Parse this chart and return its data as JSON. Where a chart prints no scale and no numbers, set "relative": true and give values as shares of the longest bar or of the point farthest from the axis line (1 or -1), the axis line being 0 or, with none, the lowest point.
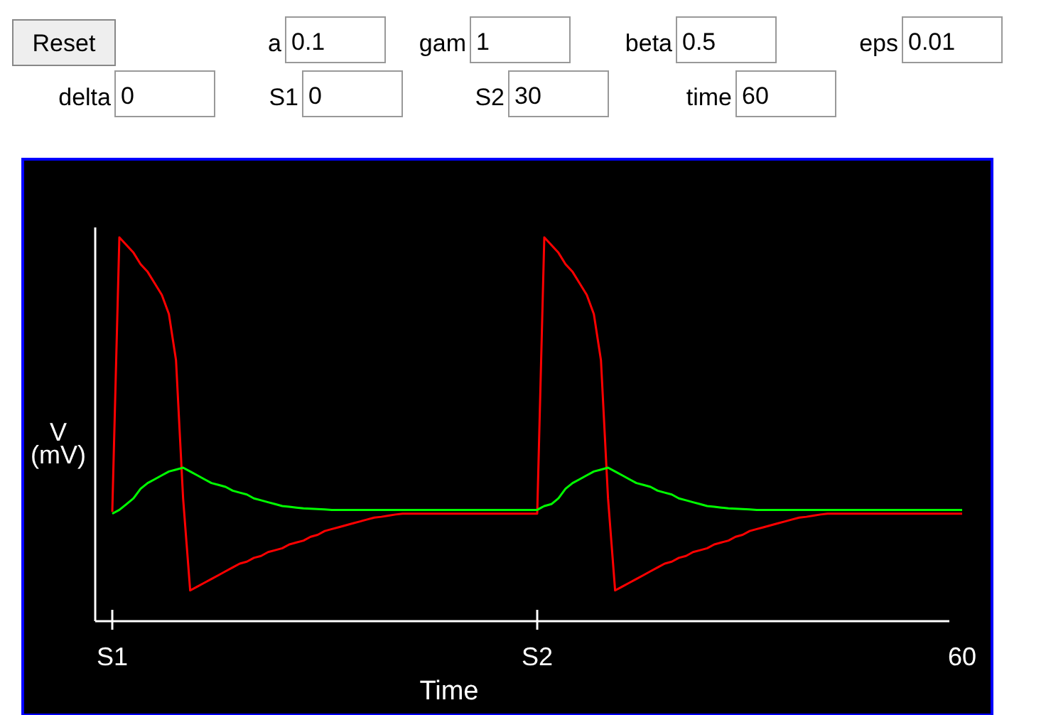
{
  "chart_data": [
    {
      "type": "other",
      "annotations": [
        "Reset",
        "a",
        "0.1",
        "gam",
        "1",
        "beta",
        "0.5",
        "eps",
        "0.01",
        "delta",
        "0",
        "S1",
        "0",
        "S2",
        "30",
        "time",
        "60"
      ]
    },
    {
      "type": "line",
      "xlabel": "Time",
      "ylabel": "V (mV)",
      "relative": true,
      "grid": false,
      "marker": "none",
      "line_style": "solid",
      "categories": [
        "S1",
        null,
        null,
        null,
        null,
        null,
        null,
        null,
        null,
        null,
        null,
        null,
        null,
        null,
        null,
        null,
        null,
        null,
        null,
        null,
        null,
        null,
        null,
        null,
        null,
        null,
        null,
        null,
        null,
        null,
        null,
        null,
        null,
        null,
        null,
        null,
        null,
        null,
        null,
        null,
        null,
        null,
        null,
        null,
        null,
        null,
        null,
        null,
        null,
        null,
        null,
        null,
        null,
        null,
        null,
        null,
        null,
        null,
        null,
        null,
        "S2",
        null,
        null,
        null,
        null,
        null,
        null,
        null,
        null,
        null,
        null,
        null,
        null,
        null,
        null,
        null,
        null,
        null,
        null,
        null,
        null,
        null,
        null,
        null,
        null,
        null,
        null,
        null,
        null,
        null,
        null,
        null,
        null,
        null,
        null,
        null,
        null,
        null,
        null,
        null,
        null,
        null,
        null,
        null,
        null,
        null,
        null,
        null,
        null,
        null,
        null,
        null,
        null,
        null,
        null,
        null,
        null,
        null,
        null,
        null,
        "60"
      ],
      "series": [
        {
          "color": "#ff0000",
          "values": [
            0.285,
            1,
            0.98,
            0.96,
            0.93,
            0.91,
            0.88,
            0.85,
            0.8,
            0.68,
            0.32,
            0.08,
            0.09,
            0.1,
            0.11,
            0.12,
            0.13,
            0.14,
            0.15,
            0.155,
            0.165,
            0.17,
            0.18,
            0.185,
            0.19,
            0.2,
            0.205,
            0.21,
            0.22,
            0.225,
            0.235,
            0.24,
            0.245,
            0.25,
            0.255,
            0.26,
            0.265,
            0.27,
            0.272,
            0.275,
            0.278,
            0.28,
            0.28,
            0.28,
            0.28,
            0.28,
            0.28,
            0.28,
            0.28,
            0.28,
            0.28,
            0.28,
            0.28,
            0.28,
            0.28,
            0.28,
            0.28,
            0.28,
            0.28,
            0.28,
            0.28,
            1,
            0.98,
            0.96,
            0.93,
            0.91,
            0.88,
            0.85,
            0.8,
            0.68,
            0.32,
            0.08,
            0.09,
            0.1,
            0.11,
            0.12,
            0.13,
            0.14,
            0.15,
            0.155,
            0.165,
            0.17,
            0.18,
            0.185,
            0.19,
            0.2,
            0.205,
            0.21,
            0.22,
            0.225,
            0.235,
            0.24,
            0.245,
            0.25,
            0.255,
            0.26,
            0.265,
            0.27,
            0.272,
            0.275,
            0.278,
            0.28,
            0.28,
            0.28,
            0.28,
            0.28,
            0.28,
            0.28,
            0.28,
            0.28,
            0.28,
            0.28,
            0.28,
            0.28,
            0.28,
            0.28,
            0.28,
            0.28,
            0.28,
            0.28,
            0.28
          ]
        },
        {
          "color": "#00ff00",
          "values": [
            0.28,
            0.29,
            0.305,
            0.32,
            0.345,
            0.36,
            0.37,
            0.38,
            0.39,
            0.395,
            0.4,
            0.39,
            0.38,
            0.37,
            0.36,
            0.355,
            0.35,
            0.34,
            0.335,
            0.33,
            0.32,
            0.315,
            0.31,
            0.305,
            0.3,
            0.298,
            0.296,
            0.294,
            0.293,
            0.292,
            0.291,
            0.29,
            0.29,
            0.29,
            0.29,
            0.29,
            0.29,
            0.29,
            0.29,
            0.29,
            0.29,
            0.29,
            0.29,
            0.29,
            0.29,
            0.29,
            0.29,
            0.29,
            0.29,
            0.29,
            0.29,
            0.29,
            0.29,
            0.29,
            0.29,
            0.29,
            0.29,
            0.29,
            0.29,
            0.29,
            0.29,
            0.3,
            0.305,
            0.32,
            0.345,
            0.36,
            0.37,
            0.38,
            0.39,
            0.395,
            0.4,
            0.39,
            0.38,
            0.37,
            0.36,
            0.355,
            0.35,
            0.34,
            0.335,
            0.33,
            0.32,
            0.315,
            0.31,
            0.305,
            0.3,
            0.298,
            0.296,
            0.294,
            0.293,
            0.292,
            0.291,
            0.29,
            0.29,
            0.29,
            0.29,
            0.29,
            0.29,
            0.29,
            0.29,
            0.29,
            0.29,
            0.29,
            0.29,
            0.29,
            0.29,
            0.29,
            0.29,
            0.29,
            0.29,
            0.29,
            0.29,
            0.29,
            0.29,
            0.29,
            0.29,
            0.29,
            0.29,
            0.29,
            0.29,
            0.29,
            0.29
          ]
        }
      ]
    }
  ]
}
